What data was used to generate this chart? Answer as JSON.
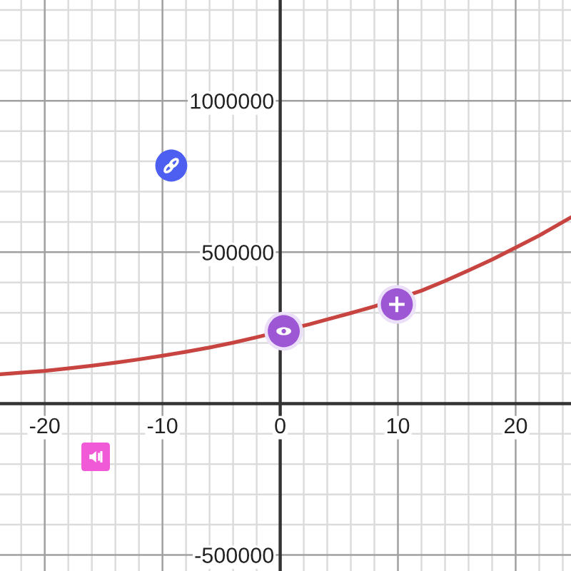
{
  "chart_data": {
    "type": "line",
    "x": [
      -23.8,
      -22,
      -20,
      -18,
      -16,
      -14,
      -12,
      -10,
      -8,
      -6,
      -4,
      -2,
      2.5,
      4,
      6,
      8,
      12,
      14,
      16,
      18,
      20,
      22,
      24.7
    ],
    "series": [
      {
        "color": "#c74440",
        "values": [
          97000,
          102000,
          108000,
          116000,
          125000,
          135000,
          146000,
          158000,
          171000,
          185000,
          201000,
          219000,
          262000,
          278000,
          299000,
          321000,
          373000,
          405000,
          440000,
          476000,
          515000,
          555000,
          615000
        ]
      }
    ],
    "xlim": [
      -23.8,
      24.7
    ],
    "ylim": [
      -553000,
      1333000
    ],
    "xticks": [
      {
        "value": -22,
        "label": null
      },
      -20,
      {
        "value": -18,
        "label": null
      },
      {
        "value": -16,
        "label": null
      },
      {
        "value": -14,
        "label": null
      },
      {
        "value": -12,
        "label": null
      },
      -10,
      {
        "value": -8,
        "label": null
      },
      {
        "value": -6,
        "label": null
      },
      {
        "value": -4,
        "label": null
      },
      {
        "value": -2,
        "label": null
      },
      0,
      {
        "value": 2,
        "label": null
      },
      {
        "value": 4,
        "label": null
      },
      {
        "value": 6,
        "label": null
      },
      {
        "value": 8,
        "label": null
      },
      10,
      {
        "value": 12,
        "label": null
      },
      {
        "value": 14,
        "label": null
      },
      {
        "value": 16,
        "label": null
      },
      {
        "value": 18,
        "label": null
      },
      20,
      {
        "value": 22,
        "label": null
      },
      {
        "value": 24,
        "label": null
      }
    ],
    "yticks": [
      -500000,
      {
        "value": -400000,
        "label": null
      },
      {
        "value": -300000,
        "label": null
      },
      {
        "value": -200000,
        "label": null
      },
      {
        "value": -100000,
        "label": null
      },
      {
        "value": 0,
        "label": null
      },
      {
        "value": 100000,
        "label": null
      },
      {
        "value": 200000,
        "label": null
      },
      {
        "value": 300000,
        "label": null
      },
      {
        "value": 400000,
        "label": null
      },
      500000,
      {
        "value": 600000,
        "label": null
      },
      {
        "value": 700000,
        "label": null
      },
      {
        "value": 800000,
        "label": null
      },
      {
        "value": 900000,
        "label": null
      },
      1000000,
      {
        "value": 1100000,
        "label": null
      },
      {
        "value": 1200000,
        "label": null
      },
      {
        "value": 1300000,
        "label": null
      }
    ],
    "grid": true
  }
}
